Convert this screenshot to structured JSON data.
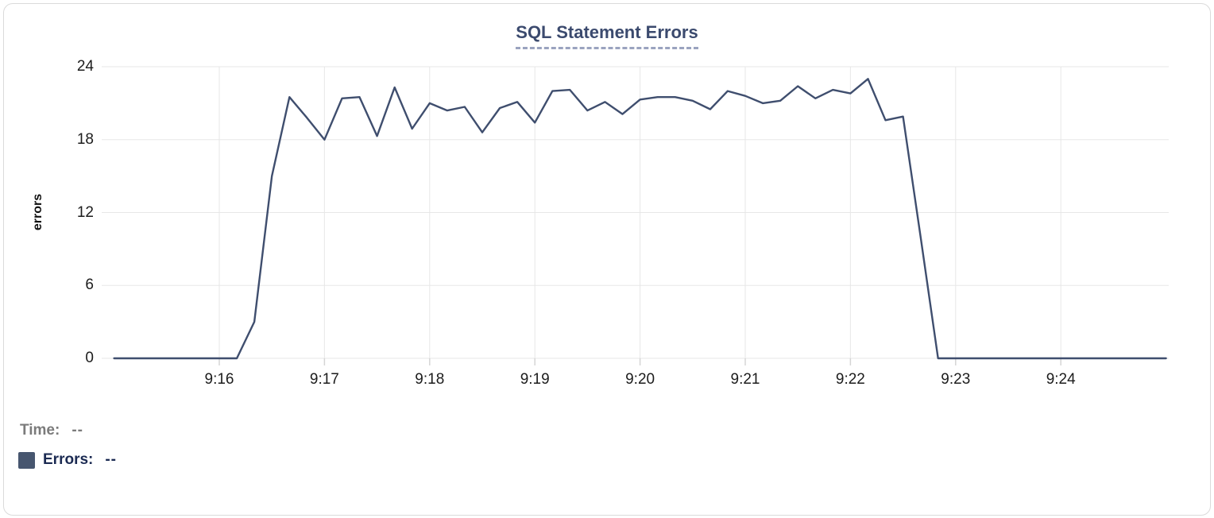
{
  "title": {
    "text": "SQL Statement Errors"
  },
  "y_axis": {
    "title": "errors"
  },
  "footer": {
    "time_label": "Time:",
    "time_value": "--",
    "errors_label": "Errors:",
    "errors_value": "--"
  },
  "colors": {
    "title": "#3b4a6e",
    "title_underline": "#9aa3bf",
    "line": "#3f4e6e",
    "legend_swatch": "#47566f",
    "time_label": "#7b7b7b",
    "errors_label": "#1b2a52",
    "gridline": "#e7e7e7",
    "tick": "#d5d5d5",
    "axis_text": "#1c1c1c"
  },
  "chart_data": {
    "type": "line",
    "title": "SQL Statement Errors",
    "xlabel": "",
    "ylabel": "errors",
    "ylim": [
      0,
      24
    ],
    "y_ticks": [
      0,
      6,
      12,
      18,
      24
    ],
    "x_tick_labels": [
      "9:16",
      "9:17",
      "9:18",
      "9:19",
      "9:20",
      "9:21",
      "9:22",
      "9:23",
      "9:24"
    ],
    "grid": true,
    "legend_position": "bottom-left",
    "series": [
      {
        "name": "Errors",
        "color": "#3f4e6e",
        "start_time": "9:15:00",
        "end_time": "9:25:00",
        "interval_seconds": 10,
        "times": [
          "9:15:00",
          "9:15:10",
          "9:15:20",
          "9:15:30",
          "9:15:40",
          "9:15:50",
          "9:16:00",
          "9:16:10",
          "9:16:20",
          "9:16:30",
          "9:16:40",
          "9:16:50",
          "9:17:00",
          "9:17:10",
          "9:17:20",
          "9:17:30",
          "9:17:40",
          "9:17:50",
          "9:18:00",
          "9:18:10",
          "9:18:20",
          "9:18:30",
          "9:18:40",
          "9:18:50",
          "9:19:00",
          "9:19:10",
          "9:19:20",
          "9:19:30",
          "9:19:40",
          "9:19:50",
          "9:20:00",
          "9:20:10",
          "9:20:20",
          "9:20:30",
          "9:20:40",
          "9:20:50",
          "9:21:00",
          "9:21:10",
          "9:21:20",
          "9:21:30",
          "9:21:40",
          "9:21:50",
          "9:22:00",
          "9:22:10",
          "9:22:20",
          "9:22:30",
          "9:22:40",
          "9:22:50",
          "9:23:00",
          "9:23:10",
          "9:23:20",
          "9:23:30",
          "9:23:40",
          "9:23:50",
          "9:24:00",
          "9:24:10",
          "9:24:20",
          "9:24:30",
          "9:24:40",
          "9:24:50",
          "9:25:00"
        ],
        "values": [
          0,
          0,
          0,
          0,
          0,
          0,
          0,
          0,
          3,
          15,
          21.5,
          19.8,
          18,
          21.4,
          21.5,
          18.3,
          22.3,
          18.9,
          21,
          20.4,
          20.7,
          18.6,
          20.6,
          21.1,
          19.4,
          22,
          22.1,
          20.4,
          21.1,
          20.1,
          21.3,
          21.5,
          21.5,
          21.2,
          20.5,
          22,
          21.6,
          21,
          21.2,
          22.4,
          21.4,
          22.1,
          21.8,
          23,
          19.6,
          19.9,
          10,
          0,
          0,
          0,
          0,
          0,
          0,
          0,
          0,
          0,
          0,
          0,
          0,
          0,
          0
        ]
      }
    ]
  }
}
